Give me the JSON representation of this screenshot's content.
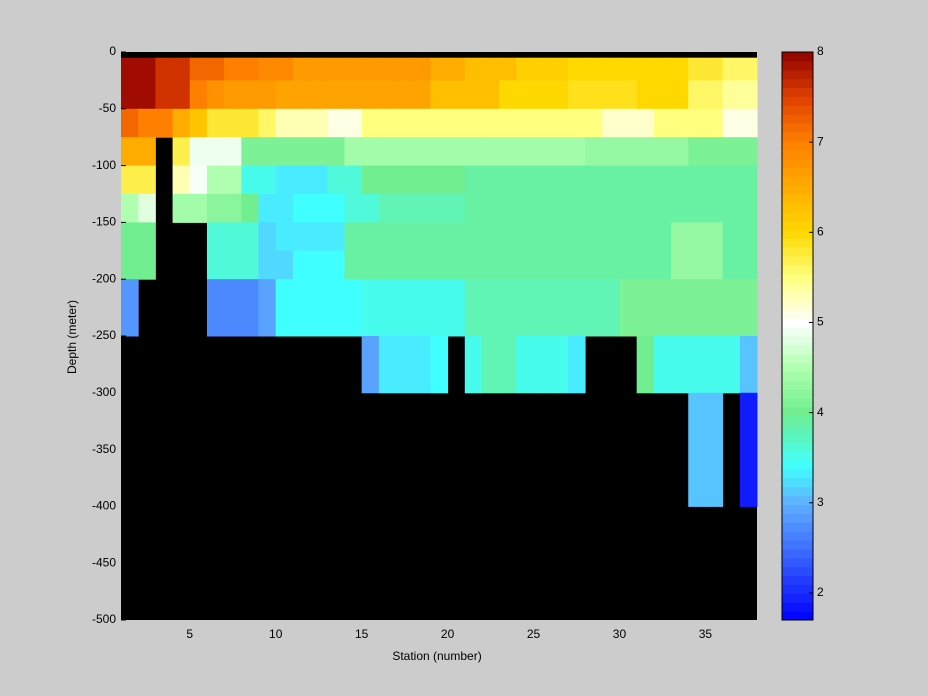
{
  "chart_data": {
    "type": "heatmap",
    "xlabel": "Station (number)",
    "ylabel": "Depth (meter)",
    "x": [
      1,
      2,
      3,
      4,
      5,
      6,
      7,
      8,
      9,
      10,
      11,
      12,
      13,
      14,
      15,
      16,
      17,
      18,
      19,
      20,
      21,
      22,
      23,
      24,
      25,
      26,
      27,
      28,
      29,
      30,
      31,
      32,
      33,
      34,
      35,
      36,
      37,
      38
    ],
    "y": [
      0,
      -5,
      -25,
      -50,
      -75,
      -100,
      -125,
      -150,
      -175,
      -200,
      -250,
      -300,
      -400,
      -500
    ],
    "z": [
      [
        null,
        null,
        null,
        null,
        null,
        null,
        null,
        null,
        null,
        null,
        null,
        null,
        null,
        null,
        null,
        null,
        null,
        null,
        null,
        null,
        null,
        null,
        null,
        null,
        null,
        null,
        null,
        null,
        null,
        null,
        null,
        null,
        null,
        null,
        null,
        null,
        null
      ],
      [
        7.9,
        7.9,
        7.6,
        7.6,
        7.2,
        7.2,
        7.0,
        7.0,
        6.9,
        6.9,
        6.7,
        6.7,
        6.7,
        6.7,
        6.7,
        6.7,
        6.7,
        6.7,
        6.5,
        6.5,
        6.3,
        6.3,
        6.3,
        6.1,
        6.1,
        6.1,
        6.0,
        6.0,
        6.0,
        6.0,
        6.0,
        6.0,
        6.0,
        5.8,
        5.8,
        5.6,
        5.6
      ],
      [
        7.9,
        7.9,
        7.6,
        7.6,
        7.0,
        6.8,
        6.7,
        6.7,
        6.7,
        6.6,
        6.6,
        6.6,
        6.6,
        6.6,
        6.6,
        6.6,
        6.6,
        6.6,
        6.3,
        6.3,
        6.3,
        6.3,
        6.0,
        6.0,
        6.0,
        6.0,
        5.9,
        5.9,
        5.9,
        5.9,
        6.0,
        6.0,
        6.0,
        5.6,
        5.6,
        5.4,
        5.4
      ],
      [
        7.2,
        7.0,
        7.0,
        6.5,
        6.2,
        5.8,
        5.8,
        5.8,
        5.6,
        5.3,
        5.3,
        5.3,
        5.1,
        5.1,
        5.5,
        5.5,
        5.5,
        5.5,
        5.5,
        5.5,
        5.5,
        5.5,
        5.5,
        5.5,
        5.5,
        5.5,
        5.5,
        5.5,
        5.2,
        5.2,
        5.2,
        5.5,
        5.5,
        5.5,
        5.5,
        5.1,
        5.1
      ],
      [
        6.5,
        6.5,
        null,
        5.7,
        4.9,
        4.9,
        4.9,
        4.1,
        4.1,
        4.1,
        4.1,
        4.1,
        4.1,
        4.4,
        4.4,
        4.4,
        4.4,
        4.4,
        4.4,
        4.4,
        4.4,
        4.4,
        4.4,
        4.4,
        4.4,
        4.4,
        4.4,
        4.3,
        4.3,
        4.3,
        4.3,
        4.3,
        4.3,
        4.1,
        4.1,
        4.1,
        4.1
      ],
      [
        5.7,
        5.7,
        null,
        5.3,
        4.95,
        4.5,
        4.5,
        3.5,
        3.5,
        3.3,
        3.3,
        3.3,
        3.6,
        3.6,
        4.0,
        4.0,
        4.0,
        4.0,
        4.0,
        4.0,
        3.9,
        3.9,
        3.9,
        3.9,
        3.9,
        3.9,
        3.9,
        3.9,
        3.9,
        3.9,
        3.9,
        3.9,
        3.9,
        3.9,
        3.9,
        3.9,
        3.9
      ],
      [
        4.5,
        4.8,
        null,
        4.4,
        4.4,
        4.2,
        4.2,
        4.0,
        3.3,
        3.3,
        3.4,
        3.4,
        3.4,
        3.6,
        3.6,
        3.8,
        3.8,
        3.8,
        3.8,
        3.8,
        3.9,
        3.9,
        3.9,
        3.9,
        3.9,
        3.9,
        3.9,
        3.9,
        3.9,
        3.9,
        3.9,
        3.9,
        3.9,
        3.9,
        3.9,
        3.9,
        3.9
      ],
      [
        4.0,
        4.0,
        null,
        null,
        null,
        3.6,
        3.6,
        3.6,
        3.2,
        3.3,
        3.3,
        3.3,
        3.3,
        3.9,
        3.9,
        3.9,
        3.9,
        3.9,
        3.9,
        3.9,
        3.9,
        3.9,
        3.9,
        3.9,
        3.9,
        3.9,
        3.9,
        3.9,
        3.9,
        3.9,
        3.9,
        3.9,
        4.3,
        4.3,
        4.3,
        3.9,
        3.9
      ],
      [
        4.0,
        4.0,
        null,
        null,
        null,
        3.6,
        3.6,
        3.6,
        3.2,
        3.2,
        3.4,
        3.4,
        3.4,
        3.9,
        3.9,
        3.9,
        3.9,
        3.9,
        3.9,
        3.9,
        3.9,
        3.9,
        3.9,
        3.9,
        3.9,
        3.9,
        3.9,
        3.9,
        3.9,
        3.9,
        3.9,
        3.9,
        4.3,
        4.3,
        4.3,
        3.9,
        3.9
      ],
      [
        2.8,
        null,
        null,
        null,
        null,
        2.7,
        2.7,
        2.7,
        2.9,
        3.4,
        3.4,
        3.4,
        3.4,
        3.4,
        3.5,
        3.5,
        3.5,
        3.5,
        3.5,
        3.5,
        3.8,
        3.8,
        3.8,
        3.8,
        3.8,
        3.8,
        3.8,
        3.8,
        3.8,
        4.1,
        4.1,
        4.1,
        4.1,
        4.1,
        4.1,
        4.1,
        4.1
      ],
      [
        null,
        null,
        null,
        null,
        null,
        null,
        null,
        null,
        null,
        null,
        null,
        null,
        null,
        null,
        2.9,
        3.3,
        3.3,
        3.3,
        3.4,
        null,
        3.5,
        3.8,
        3.8,
        3.5,
        3.5,
        3.5,
        3.3,
        null,
        null,
        null,
        4.0,
        3.5,
        3.5,
        3.5,
        3.5,
        3.5,
        3.1
      ],
      [
        null,
        null,
        null,
        null,
        null,
        null,
        null,
        null,
        null,
        null,
        null,
        null,
        null,
        null,
        null,
        null,
        null,
        null,
        null,
        null,
        null,
        null,
        null,
        null,
        null,
        null,
        null,
        null,
        null,
        null,
        null,
        null,
        null,
        3.1,
        3.1,
        null,
        1.9
      ],
      [
        null,
        null,
        null,
        null,
        null,
        null,
        null,
        null,
        null,
        null,
        null,
        null,
        null,
        null,
        null,
        null,
        null,
        null,
        null,
        null,
        null,
        null,
        null,
        null,
        null,
        null,
        null,
        null,
        null,
        null,
        null,
        null,
        null,
        null,
        null,
        null,
        null
      ]
    ],
    "xlim": [
      1,
      38
    ],
    "xticks": [
      5,
      10,
      15,
      20,
      25,
      30,
      35
    ],
    "ylim": [
      -500,
      0
    ],
    "yticks": [
      -500,
      -450,
      -400,
      -350,
      -300,
      -250,
      -200,
      -150,
      -100,
      -50,
      0
    ],
    "clim": [
      1.7,
      8
    ],
    "cticks": [
      2,
      3,
      4,
      5,
      6,
      7,
      8
    ],
    "nan_color": "#000000",
    "colormap": [
      {
        "value": 1.7,
        "color": "#0000ff"
      },
      {
        "value": 2.5,
        "color": "#3f6fff"
      },
      {
        "value": 3.0,
        "color": "#60b0ff"
      },
      {
        "value": 3.4,
        "color": "#40ffff"
      },
      {
        "value": 4.0,
        "color": "#70ee90"
      },
      {
        "value": 4.5,
        "color": "#b0ffb0"
      },
      {
        "value": 5.0,
        "color": "#ffffff"
      },
      {
        "value": 5.5,
        "color": "#ffff80"
      },
      {
        "value": 6.0,
        "color": "#ffd800"
      },
      {
        "value": 7.0,
        "color": "#ff8000"
      },
      {
        "value": 7.5,
        "color": "#e04000"
      },
      {
        "value": 8.0,
        "color": "#900000"
      }
    ]
  }
}
